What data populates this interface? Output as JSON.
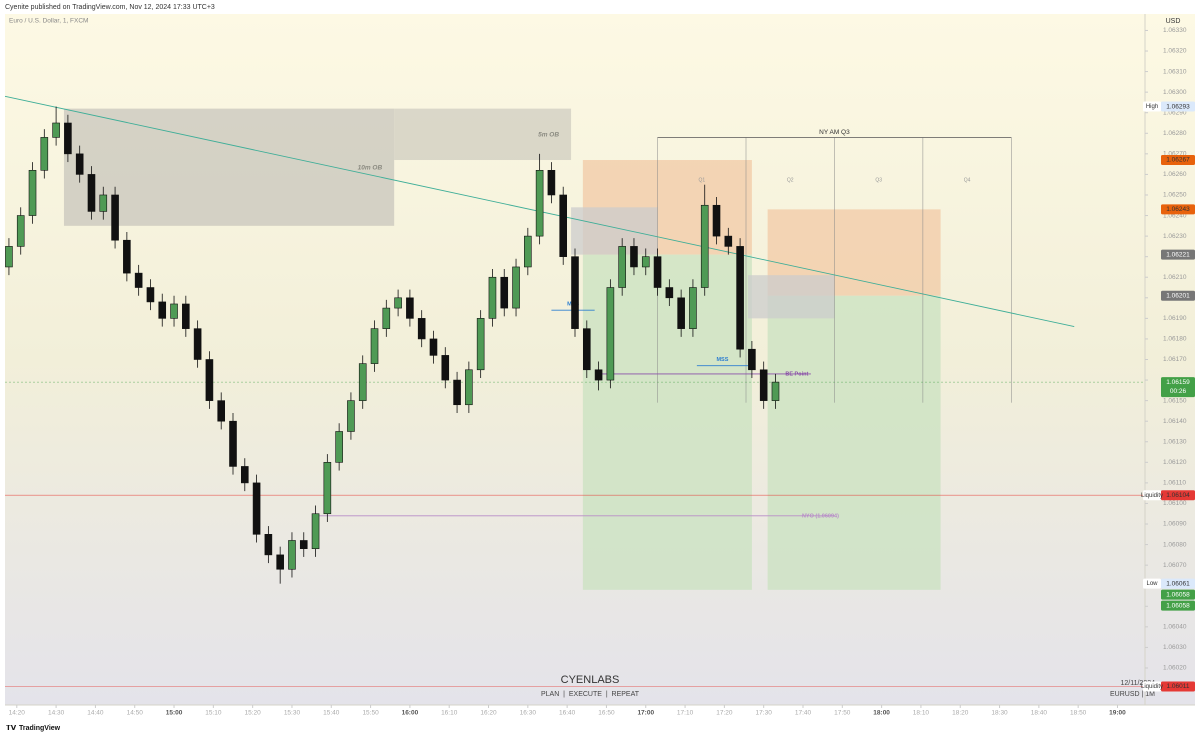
{
  "header": {
    "publisher": "Cyenite published on TradingView.com, Nov 12, 2024 17:33 UTC+3"
  },
  "chart_data": {
    "type": "candlestick",
    "title": "Euro / U.S. Dollar, 1, FXCM",
    "currency": "USD",
    "up_color": "#4f9a55",
    "down_color": "#111111",
    "x": [
      "14:18",
      "14:21",
      "14:24",
      "14:27",
      "14:30",
      "14:33",
      "14:36",
      "14:39",
      "14:42",
      "14:45",
      "14:48",
      "14:51",
      "14:54",
      "14:57",
      "15:00",
      "15:03",
      "15:06",
      "15:09",
      "15:12",
      "15:15",
      "15:18",
      "15:21",
      "15:24",
      "15:27",
      "15:30",
      "15:33",
      "15:36",
      "15:39",
      "15:42",
      "15:45",
      "15:48",
      "15:51",
      "15:54",
      "15:57",
      "16:00",
      "16:03",
      "16:06",
      "16:09",
      "16:12",
      "16:15",
      "16:18",
      "16:21",
      "16:24",
      "16:27",
      "16:30",
      "16:33",
      "16:36",
      "16:39",
      "16:42",
      "16:45",
      "16:48",
      "16:51",
      "16:54",
      "16:57",
      "17:00",
      "17:03",
      "17:06",
      "17:09",
      "17:12",
      "17:15",
      "17:18",
      "17:21",
      "17:24",
      "17:27",
      "17:30",
      "17:33"
    ],
    "open": [
      1.06215,
      1.06225,
      1.0624,
      1.06262,
      1.06278,
      1.06285,
      1.0627,
      1.0626,
      1.06242,
      1.0625,
      1.06228,
      1.06212,
      1.06205,
      1.06198,
      1.0619,
      1.06197,
      1.06185,
      1.0617,
      1.0615,
      1.0614,
      1.06118,
      1.0611,
      1.06085,
      1.06075,
      1.06068,
      1.06082,
      1.06078,
      1.06095,
      1.0612,
      1.06135,
      1.0615,
      1.06168,
      1.06185,
      1.06195,
      1.062,
      1.0619,
      1.0618,
      1.06172,
      1.0616,
      1.06148,
      1.06165,
      1.0619,
      1.0621,
      1.06195,
      1.06215,
      1.0623,
      1.06262,
      1.0625,
      1.0622,
      1.06185,
      1.06165,
      1.0616,
      1.06205,
      1.06225,
      1.06215,
      1.0622,
      1.06205,
      1.062,
      1.06185,
      1.06205,
      1.06245,
      1.0623,
      1.06225,
      1.06175,
      1.06165,
      1.0615
    ],
    "high": [
      1.06229,
      1.06244,
      1.06266,
      1.06282,
      1.06293,
      1.06289,
      1.06274,
      1.06264,
      1.06254,
      1.06254,
      1.06232,
      1.06216,
      1.06209,
      1.06202,
      1.06201,
      1.06201,
      1.06189,
      1.06174,
      1.06154,
      1.06144,
      1.06122,
      1.06114,
      1.06089,
      1.06079,
      1.06086,
      1.06086,
      1.06099,
      1.06124,
      1.06139,
      1.06154,
      1.06172,
      1.06189,
      1.06199,
      1.06204,
      1.06204,
      1.06194,
      1.06184,
      1.06176,
      1.06164,
      1.06169,
      1.06194,
      1.06214,
      1.06214,
      1.06219,
      1.06234,
      1.0627,
      1.06266,
      1.06254,
      1.06224,
      1.06189,
      1.06169,
      1.06209,
      1.06229,
      1.06229,
      1.06224,
      1.06224,
      1.06209,
      1.06204,
      1.06209,
      1.06255,
      1.06249,
      1.06234,
      1.06229,
      1.06179,
      1.06169,
      1.06163
    ],
    "low": [
      1.06211,
      1.06221,
      1.06236,
      1.06258,
      1.06274,
      1.06266,
      1.06256,
      1.06238,
      1.06238,
      1.06224,
      1.06208,
      1.06201,
      1.06194,
      1.06186,
      1.06186,
      1.06181,
      1.06166,
      1.06146,
      1.06136,
      1.06114,
      1.06106,
      1.06081,
      1.06071,
      1.06061,
      1.06064,
      1.06074,
      1.06074,
      1.06091,
      1.06116,
      1.06131,
      1.06146,
      1.06164,
      1.06181,
      1.06191,
      1.06186,
      1.06176,
      1.06168,
      1.06156,
      1.06144,
      1.06144,
      1.06161,
      1.06186,
      1.06191,
      1.06191,
      1.06211,
      1.06226,
      1.06246,
      1.06216,
      1.06181,
      1.06161,
      1.06155,
      1.06156,
      1.06201,
      1.06211,
      1.06211,
      1.06201,
      1.06196,
      1.06181,
      1.06181,
      1.06201,
      1.06226,
      1.06221,
      1.06171,
      1.06161,
      1.06146,
      1.06146
    ],
    "close": [
      1.06225,
      1.0624,
      1.06262,
      1.06278,
      1.06285,
      1.0627,
      1.0626,
      1.06242,
      1.0625,
      1.06228,
      1.06212,
      1.06205,
      1.06198,
      1.0619,
      1.06197,
      1.06185,
      1.0617,
      1.0615,
      1.0614,
      1.06118,
      1.0611,
      1.06085,
      1.06075,
      1.06068,
      1.06082,
      1.06078,
      1.06095,
      1.0612,
      1.06135,
      1.0615,
      1.06168,
      1.06185,
      1.06195,
      1.062,
      1.0619,
      1.0618,
      1.06172,
      1.0616,
      1.06148,
      1.06165,
      1.0619,
      1.0621,
      1.06195,
      1.06215,
      1.0623,
      1.06262,
      1.0625,
      1.0622,
      1.06185,
      1.06165,
      1.0616,
      1.06205,
      1.06225,
      1.06215,
      1.0622,
      1.06205,
      1.062,
      1.06185,
      1.06205,
      1.06245,
      1.0623,
      1.06225,
      1.06175,
      1.06165,
      1.0615,
      1.06159
    ],
    "xlim": [
      "14:17",
      "19:07"
    ],
    "xticks": [
      "14:20",
      "14:30",
      "14:40",
      "14:50",
      "15:00",
      "15:10",
      "15:20",
      "15:30",
      "15:40",
      "15:50",
      "16:00",
      "16:10",
      "16:20",
      "16:30",
      "16:40",
      "16:50",
      "17:00",
      "17:10",
      "17:20",
      "17:30",
      "17:40",
      "17:50",
      "18:00",
      "18:10",
      "18:20",
      "18:30",
      "18:40",
      "18:50",
      "19:00"
    ],
    "ylim": [
      1.06002,
      1.06338
    ],
    "yticks": [
      {
        "value": 1.0633,
        "label": "1.06330"
      },
      {
        "value": 1.0632,
        "label": "1.06320"
      },
      {
        "value": 1.0631,
        "label": "1.06310"
      },
      {
        "value": 1.063,
        "label": "1.06300"
      },
      {
        "value": 1.0629,
        "label": "1.06290"
      },
      {
        "value": 1.0628,
        "label": "1.06280"
      },
      {
        "value": 1.0627,
        "label": "1.06270"
      },
      {
        "value": 1.0626,
        "label": "1.06260"
      },
      {
        "value": 1.0625,
        "label": "1.06250"
      },
      {
        "value": 1.0624,
        "label": "1.06240"
      },
      {
        "value": 1.0623,
        "label": "1.06230"
      },
      {
        "value": 1.0622,
        "label": "1.06220"
      },
      {
        "value": 1.0621,
        "label": "1.06210"
      },
      {
        "value": 1.062,
        "label": "1.06200"
      },
      {
        "value": 1.0619,
        "label": "1.06190"
      },
      {
        "value": 1.0618,
        "label": "1.06180"
      },
      {
        "value": 1.0617,
        "label": "1.06170"
      },
      {
        "value": 1.0616,
        "label": "1.06160"
      },
      {
        "value": 1.0615,
        "label": "1.06150"
      },
      {
        "value": 1.0614,
        "label": "1.06140"
      },
      {
        "value": 1.0613,
        "label": "1.06130"
      },
      {
        "value": 1.0612,
        "label": "1.06120"
      },
      {
        "value": 1.0611,
        "label": "1.06110"
      },
      {
        "value": 1.061,
        "label": "1.06100"
      },
      {
        "value": 1.0609,
        "label": "1.06090"
      },
      {
        "value": 1.0608,
        "label": "1.06080"
      },
      {
        "value": 1.0607,
        "label": "1.06070"
      },
      {
        "value": 1.0606,
        "label": "1.06060"
      },
      {
        "value": 1.0605,
        "label": "1.06050"
      },
      {
        "value": 1.0604,
        "label": "1.06040"
      },
      {
        "value": 1.0603,
        "label": "1.06030"
      },
      {
        "value": 1.0602,
        "label": "1.06020"
      },
      {
        "value": 1.0601,
        "label": "1.06010"
      }
    ],
    "zones": [
      {
        "x": [
          "14:32",
          "15:56"
        ],
        "y": [
          1.06235,
          1.06292
        ],
        "color": "#c8c6bc",
        "name": "10m OB"
      },
      {
        "x": [
          "15:56",
          "16:41"
        ],
        "y": [
          1.06267,
          1.06292
        ],
        "color": "#cfccc0",
        "name": "5m OB"
      },
      {
        "x": [
          "16:44",
          "17:27"
        ],
        "y": [
          1.06221,
          1.06267
        ],
        "color": "#f2c9a6"
      },
      {
        "x": [
          "16:44",
          "17:27"
        ],
        "y": [
          1.06058,
          1.06221
        ],
        "color": "#c9e2c0"
      },
      {
        "x": [
          "17:31",
          "18:15"
        ],
        "y": [
          1.06201,
          1.06243
        ],
        "color": "#f2c9a6"
      },
      {
        "x": [
          "17:31",
          "18:15"
        ],
        "y": [
          1.06058,
          1.06201
        ],
        "color": "#c9e2c0"
      },
      {
        "x": [
          "16:41",
          "17:03"
        ],
        "y": [
          1.06221,
          1.06244
        ],
        "color": "#cccccc"
      },
      {
        "x": [
          "17:26",
          "17:48"
        ],
        "y": [
          1.0619,
          1.06211
        ],
        "color": "#cccccc"
      }
    ],
    "segments": [
      {
        "x": [
          "14:17",
          "18:49"
        ],
        "y": [
          1.06298,
          1.06186
        ],
        "color": "#3fae98"
      },
      {
        "x": [
          "16:36",
          "16:47"
        ],
        "y": [
          1.06194,
          1.06194
        ],
        "color": "#2f7fd0",
        "name": "MSS"
      },
      {
        "x": [
          "17:13",
          "17:26"
        ],
        "y": [
          1.06167,
          1.06167
        ],
        "color": "#2f7fd0",
        "name": "MSS"
      },
      {
        "x": [
          "16:48",
          "17:42"
        ],
        "y": [
          1.06163,
          1.06163
        ],
        "color": "#8a4fa8",
        "name": "BE Point"
      },
      {
        "x": [
          "15:36",
          "17:48"
        ],
        "y": [
          1.06094,
          1.06094
        ],
        "color": "#b88cc8",
        "name": "NYO (1.06094)"
      }
    ],
    "session": {
      "name": "NY AM Q3",
      "x": [
        "17:03",
        "18:33"
      ],
      "top": 1.06278,
      "bottom": 1.06149,
      "quarters": [
        "Q1",
        "Q2",
        "Q3",
        "Q4"
      ]
    },
    "price_labels": [
      {
        "name": "High",
        "value": 1.06293,
        "color": "#dbe9fb"
      },
      {
        "value": 1.06267,
        "color": "#e8620c"
      },
      {
        "value": 1.06243,
        "color": "#e8620c"
      },
      {
        "value": 1.06221,
        "color": "#777777"
      },
      {
        "value": 1.06201,
        "color": "#777777"
      },
      {
        "value": 1.06159,
        "color": "#43a047",
        "sub": "00:26",
        "line": true
      },
      {
        "name": "Liquidity",
        "value": 1.06104,
        "color": "#e53935",
        "line": true
      },
      {
        "name": "Low",
        "value": 1.06061,
        "color": "#dbe9fb"
      },
      {
        "value": 1.06058,
        "color": "#43a047"
      },
      {
        "value": 1.06058,
        "color": "#43a047"
      },
      {
        "name": "Liquidity",
        "value": 1.06011,
        "color": "#e53935",
        "line": true
      }
    ]
  },
  "watermark": {
    "brand": "CYENLABS",
    "tagline": "PLAN  |  EXECUTE  |  REPEAT",
    "date": "12/11/2024",
    "symbol": "EURUSD | 1M"
  },
  "footer": {
    "logo": "TradingView"
  }
}
